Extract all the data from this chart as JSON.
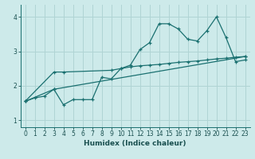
{
  "xlabel": "Humidex (Indice chaleur)",
  "bg_color": "#cdeaea",
  "grid_color": "#b0d4d4",
  "line_color": "#1a7070",
  "xlim": [
    -0.5,
    23.5
  ],
  "ylim": [
    0.8,
    4.35
  ],
  "xticks": [
    0,
    1,
    2,
    3,
    4,
    5,
    6,
    7,
    8,
    9,
    10,
    11,
    12,
    13,
    14,
    15,
    16,
    17,
    18,
    19,
    20,
    21,
    22,
    23
  ],
  "yticks": [
    1,
    2,
    3,
    4
  ],
  "line1_x": [
    0,
    1,
    2,
    3,
    4,
    5,
    6,
    7,
    8,
    9,
    10,
    11,
    12,
    13,
    14,
    15,
    16,
    17,
    18,
    19,
    20,
    21,
    22,
    23
  ],
  "line1_y": [
    1.55,
    1.65,
    1.7,
    1.9,
    1.45,
    1.6,
    1.6,
    1.6,
    2.25,
    2.2,
    2.5,
    2.6,
    3.05,
    3.25,
    3.8,
    3.8,
    3.65,
    3.35,
    3.3,
    3.6,
    4.0,
    3.4,
    2.7,
    2.75
  ],
  "line2_x": [
    0,
    3,
    4,
    9,
    10,
    11,
    12,
    13,
    14,
    15,
    16,
    17,
    18,
    19,
    20,
    21,
    22,
    23
  ],
  "line2_y": [
    1.55,
    2.4,
    2.4,
    2.45,
    2.5,
    2.55,
    2.58,
    2.6,
    2.62,
    2.65,
    2.68,
    2.7,
    2.72,
    2.75,
    2.78,
    2.8,
    2.83,
    2.85
  ],
  "line3_x": [
    0,
    3,
    23
  ],
  "line3_y": [
    1.55,
    1.9,
    2.85
  ]
}
